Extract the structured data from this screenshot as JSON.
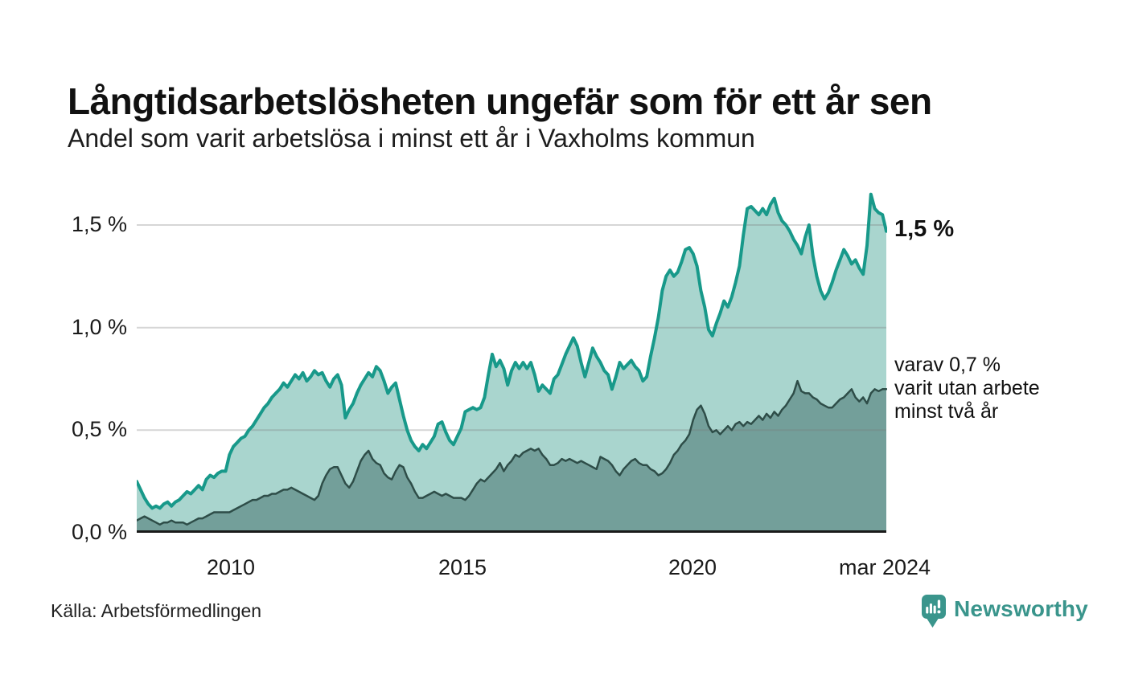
{
  "header": {
    "title": "Långtidsarbetslösheten ungefär som för ett år sen",
    "subtitle": "Andel som varit arbetslösa i minst ett år i Vaxholms kommun"
  },
  "chart_data": {
    "type": "area",
    "title": "Andel som varit arbetslösa i minst ett år i Vaxholms kommun",
    "unit": "%",
    "x_start": "2008-01",
    "x_end": "2024-03",
    "frequency": "monthly",
    "ylim": [
      0,
      1.75
    ],
    "grid_values": [
      0.5,
      1.0,
      1.5
    ],
    "yticks": [
      "1,5 %",
      "1,0 %",
      "0,5 %",
      "0,0 %"
    ],
    "xticks": [
      "2010",
      "2015",
      "2020",
      "mar 2024"
    ],
    "colors": {
      "line_one_year": "#18998a",
      "fill_one_year": "#a9d5ce",
      "line_two_years": "#2e4d48",
      "fill_two_years": "#739f9a",
      "gridline": "rgba(120,120,120,0.30)",
      "baseline": "#1a1a1a"
    },
    "series": [
      {
        "name": "Andel arbetslösa minst ett år",
        "values": [
          0.25,
          0.21,
          0.17,
          0.14,
          0.12,
          0.13,
          0.12,
          0.14,
          0.15,
          0.13,
          0.15,
          0.16,
          0.18,
          0.2,
          0.19,
          0.21,
          0.23,
          0.21,
          0.26,
          0.28,
          0.27,
          0.29,
          0.3,
          0.3,
          0.38,
          0.42,
          0.44,
          0.46,
          0.47,
          0.5,
          0.52,
          0.55,
          0.58,
          0.61,
          0.63,
          0.66,
          0.68,
          0.7,
          0.73,
          0.71,
          0.74,
          0.77,
          0.75,
          0.78,
          0.74,
          0.76,
          0.79,
          0.77,
          0.78,
          0.74,
          0.71,
          0.75,
          0.77,
          0.72,
          0.56,
          0.6,
          0.63,
          0.68,
          0.72,
          0.75,
          0.78,
          0.76,
          0.81,
          0.79,
          0.74,
          0.68,
          0.71,
          0.73,
          0.65,
          0.57,
          0.5,
          0.45,
          0.42,
          0.4,
          0.43,
          0.41,
          0.44,
          0.47,
          0.53,
          0.54,
          0.49,
          0.45,
          0.43,
          0.47,
          0.51,
          0.59,
          0.6,
          0.61,
          0.6,
          0.61,
          0.66,
          0.77,
          0.87,
          0.81,
          0.84,
          0.8,
          0.72,
          0.79,
          0.83,
          0.8,
          0.83,
          0.8,
          0.83,
          0.77,
          0.69,
          0.72,
          0.7,
          0.68,
          0.75,
          0.77,
          0.82,
          0.87,
          0.91,
          0.95,
          0.91,
          0.83,
          0.76,
          0.83,
          0.9,
          0.86,
          0.83,
          0.79,
          0.77,
          0.7,
          0.76,
          0.83,
          0.8,
          0.82,
          0.84,
          0.81,
          0.79,
          0.74,
          0.76,
          0.86,
          0.95,
          1.05,
          1.18,
          1.25,
          1.28,
          1.25,
          1.27,
          1.32,
          1.38,
          1.39,
          1.36,
          1.3,
          1.18,
          1.1,
          0.99,
          0.96,
          1.02,
          1.07,
          1.13,
          1.1,
          1.15,
          1.22,
          1.3,
          1.45,
          1.58,
          1.59,
          1.57,
          1.55,
          1.58,
          1.55,
          1.6,
          1.63,
          1.56,
          1.52,
          1.5,
          1.47,
          1.43,
          1.4,
          1.36,
          1.44,
          1.5,
          1.35,
          1.25,
          1.18,
          1.14,
          1.17,
          1.22,
          1.28,
          1.33,
          1.38,
          1.35,
          1.31,
          1.33,
          1.29,
          1.26,
          1.4,
          1.65,
          1.58,
          1.56,
          1.55,
          1.47
        ]
      },
      {
        "name": "varav arbetslösa minst två år",
        "values": [
          0.06,
          0.07,
          0.08,
          0.07,
          0.06,
          0.05,
          0.04,
          0.05,
          0.05,
          0.06,
          0.05,
          0.05,
          0.05,
          0.04,
          0.05,
          0.06,
          0.07,
          0.07,
          0.08,
          0.09,
          0.1,
          0.1,
          0.1,
          0.1,
          0.1,
          0.11,
          0.12,
          0.13,
          0.14,
          0.15,
          0.16,
          0.16,
          0.17,
          0.18,
          0.18,
          0.19,
          0.19,
          0.2,
          0.21,
          0.21,
          0.22,
          0.21,
          0.2,
          0.19,
          0.18,
          0.17,
          0.16,
          0.18,
          0.24,
          0.28,
          0.31,
          0.32,
          0.32,
          0.28,
          0.24,
          0.22,
          0.25,
          0.3,
          0.35,
          0.38,
          0.4,
          0.36,
          0.34,
          0.33,
          0.29,
          0.27,
          0.26,
          0.3,
          0.33,
          0.32,
          0.27,
          0.24,
          0.2,
          0.17,
          0.17,
          0.18,
          0.19,
          0.2,
          0.19,
          0.18,
          0.19,
          0.18,
          0.17,
          0.17,
          0.17,
          0.16,
          0.18,
          0.21,
          0.24,
          0.26,
          0.25,
          0.27,
          0.29,
          0.31,
          0.34,
          0.3,
          0.33,
          0.35,
          0.38,
          0.37,
          0.39,
          0.4,
          0.41,
          0.4,
          0.41,
          0.38,
          0.36,
          0.33,
          0.33,
          0.34,
          0.36,
          0.35,
          0.36,
          0.35,
          0.34,
          0.35,
          0.34,
          0.33,
          0.32,
          0.31,
          0.37,
          0.36,
          0.35,
          0.33,
          0.3,
          0.28,
          0.31,
          0.33,
          0.35,
          0.36,
          0.34,
          0.33,
          0.33,
          0.31,
          0.3,
          0.28,
          0.29,
          0.31,
          0.34,
          0.38,
          0.4,
          0.43,
          0.45,
          0.48,
          0.55,
          0.6,
          0.62,
          0.58,
          0.52,
          0.49,
          0.5,
          0.48,
          0.5,
          0.52,
          0.5,
          0.53,
          0.54,
          0.52,
          0.54,
          0.53,
          0.55,
          0.57,
          0.55,
          0.58,
          0.56,
          0.59,
          0.57,
          0.6,
          0.62,
          0.65,
          0.68,
          0.74,
          0.69,
          0.68,
          0.68,
          0.66,
          0.65,
          0.63,
          0.62,
          0.61,
          0.61,
          0.63,
          0.65,
          0.66,
          0.68,
          0.7,
          0.66,
          0.64,
          0.66,
          0.63,
          0.68,
          0.7,
          0.69,
          0.7,
          0.7
        ]
      }
    ],
    "legend_position": "right-annotations",
    "grid": true
  },
  "annotations": {
    "latest_total": "1,5 %",
    "two_year_note": "varav 0,7 %\nvarit utan arbete\nminst två år"
  },
  "footer": {
    "source": "Källa: Arbetsförmedlingen",
    "brand": "Newsworthy",
    "brand_color": "#3a958c"
  }
}
